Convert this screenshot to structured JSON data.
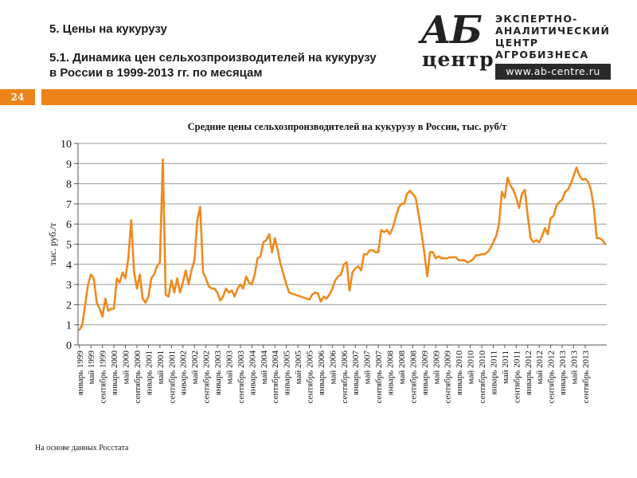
{
  "header": {
    "section_title": "5. Цены на кукурузу",
    "subtitle": "5.1. Динамика цен сельхозпроизводителей на кукурузу в России в 1999-2013 гг. по месяцам"
  },
  "logo": {
    "mark_ab": "АБ",
    "mark_center": "центр",
    "line1": "ЭКСПЕРТНО-",
    "line2": "АНАЛИТИЧЕСКИЙ",
    "line3": "ЦЕНТР",
    "line4": "АГРОБИЗНЕСА",
    "url": "www.ab-centre.ru"
  },
  "page_number": "24",
  "footer_note": "На основе данных Росстата",
  "colors": {
    "accent": "#ed8419",
    "line": "#ee8a1e",
    "grid": "#9a9a9a"
  },
  "chart_data": {
    "type": "line",
    "title": "Средние цены сельхозпроизводителей на кукурузу в России, тыс. руб/т",
    "xlabel": "",
    "ylabel": "тыс. руб./т",
    "ylim": [
      0,
      10
    ],
    "yticks": [
      0,
      1,
      2,
      3,
      4,
      5,
      6,
      7,
      8,
      9,
      10
    ],
    "grid": true,
    "legend": "none",
    "tick_labels": [
      "январь 1999",
      "май 1999",
      "сентябрь 1999",
      "январь 2000",
      "май 2000",
      "сентябрь 2000",
      "январь 2001",
      "май 2001",
      "сентябрь 2001",
      "январь 2002",
      "май 2002",
      "сентябрь 2002",
      "январь 2003",
      "май 2003",
      "сентябрь 2003",
      "январь 2004",
      "май 2004",
      "сентябрь 2004",
      "январь 2005",
      "май 2005",
      "сентябрь 2005",
      "январь 2006",
      "май 2006",
      "сентябрь 2006",
      "январь 2007",
      "май 2007",
      "сентябрь 2007",
      "январь 2008",
      "май 2008",
      "сентябрь 2008",
      "январь 2009",
      "май 2009",
      "сентябрь 2009",
      "январь 2010",
      "май 2010",
      "сентябрь 2010",
      "январь 2011",
      "май 2011",
      "сентябрь 2011",
      "январь 2012",
      "май 2012",
      "сентябрь 2012",
      "январь 2013",
      "май 2013",
      "сентябрь 2013"
    ],
    "series": [
      {
        "name": "Средние цены на кукурузу",
        "values": [
          0.75,
          1.0,
          2.0,
          3.0,
          3.5,
          3.3,
          2.1,
          1.8,
          1.4,
          2.3,
          1.7,
          1.8,
          1.8,
          3.3,
          3.1,
          3.6,
          3.3,
          4.3,
          6.2,
          3.6,
          2.8,
          3.5,
          2.3,
          2.1,
          2.4,
          3.3,
          3.5,
          3.9,
          4.1,
          9.2,
          2.5,
          2.4,
          3.2,
          2.6,
          3.3,
          2.6,
          3.1,
          3.7,
          3.0,
          3.7,
          4.2,
          6.2,
          6.85,
          3.6,
          3.3,
          2.9,
          2.8,
          2.8,
          2.6,
          2.2,
          2.4,
          2.8,
          2.6,
          2.7,
          2.4,
          2.8,
          3.0,
          2.8,
          3.4,
          3.1,
          3.0,
          3.5,
          4.3,
          4.4,
          5.1,
          5.2,
          5.5,
          4.6,
          5.3,
          4.7,
          4.0,
          3.5,
          3.0,
          2.6,
          2.55,
          2.5,
          2.45,
          2.4,
          2.35,
          2.3,
          2.25,
          2.5,
          2.6,
          2.55,
          2.15,
          2.4,
          2.3,
          2.5,
          2.8,
          3.2,
          3.4,
          3.5,
          4.0,
          4.1,
          2.7,
          3.6,
          3.8,
          3.9,
          3.7,
          4.5,
          4.5,
          4.7,
          4.7,
          4.6,
          4.6,
          5.7,
          5.6,
          5.7,
          5.5,
          5.8,
          6.3,
          6.8,
          7.0,
          7.0,
          7.5,
          7.65,
          7.5,
          7.3,
          6.5,
          5.6,
          4.6,
          3.4,
          4.6,
          4.6,
          4.3,
          4.4,
          4.3,
          4.3,
          4.3,
          4.35,
          4.35,
          4.35,
          4.2,
          4.2,
          4.2,
          4.1,
          4.15,
          4.25,
          4.45,
          4.45,
          4.5,
          4.5,
          4.6,
          4.8,
          5.1,
          5.4,
          6.0,
          7.6,
          7.3,
          8.3,
          7.9,
          7.7,
          7.3,
          6.8,
          7.5,
          7.7,
          6.4,
          5.3,
          5.1,
          5.2,
          5.1,
          5.4,
          5.8,
          5.5,
          6.3,
          6.4,
          6.9,
          7.1,
          7.2,
          7.6,
          7.7,
          8.0,
          8.4,
          8.8,
          8.4,
          8.2,
          8.25,
          8.1,
          7.7,
          6.8,
          5.3,
          5.3,
          5.2,
          5.0
        ]
      }
    ]
  }
}
